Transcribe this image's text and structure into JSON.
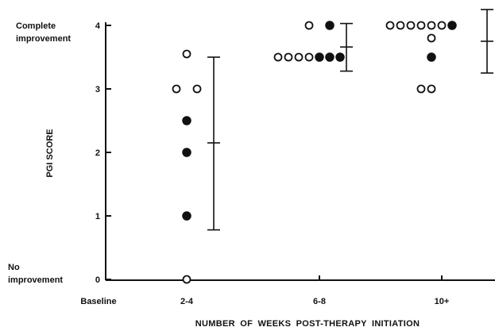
{
  "chart_data": {
    "type": "scatter",
    "xlabel": "NUMBER OF WEEKS POST-THERAPY INITIATION",
    "ylabel": "PGI SCORE",
    "ylim": [
      0,
      4
    ],
    "categories": [
      "Baseline",
      "2-4",
      "6-8",
      "10+"
    ],
    "y_ticks": [
      {
        "value": 4,
        "label": "4"
      },
      {
        "value": 3,
        "label": "3"
      },
      {
        "value": 2,
        "label": "2"
      },
      {
        "value": 1,
        "label": "1"
      },
      {
        "value": 0,
        "label": "0"
      }
    ],
    "y_annotations": [
      {
        "value": 4,
        "lines": [
          "Complete",
          "improvement"
        ]
      },
      {
        "value": 0,
        "lines": [
          "No",
          "improvement"
        ]
      }
    ],
    "marker_legend": {
      "open": "open circle",
      "filled": "filled circle"
    },
    "points": [
      {
        "category": "2-4",
        "y": 3.55,
        "marker": "open",
        "slot": 0
      },
      {
        "category": "2-4",
        "y": 3.0,
        "marker": "open",
        "slot": -1
      },
      {
        "category": "2-4",
        "y": 3.0,
        "marker": "open",
        "slot": 1
      },
      {
        "category": "2-4",
        "y": 2.5,
        "marker": "filled",
        "slot": 0
      },
      {
        "category": "2-4",
        "y": 2.0,
        "marker": "filled",
        "slot": 0
      },
      {
        "category": "2-4",
        "y": 1.0,
        "marker": "filled",
        "slot": 0
      },
      {
        "category": "2-4",
        "y": 0.0,
        "marker": "open",
        "slot": 0
      },
      {
        "category": "6-8",
        "y": 4.0,
        "marker": "open",
        "slot": -1
      },
      {
        "category": "6-8",
        "y": 4.0,
        "marker": "filled",
        "slot": 1
      },
      {
        "category": "6-8",
        "y": 3.5,
        "marker": "open",
        "slot": -4
      },
      {
        "category": "6-8",
        "y": 3.5,
        "marker": "open",
        "slot": -3
      },
      {
        "category": "6-8",
        "y": 3.5,
        "marker": "open",
        "slot": -2
      },
      {
        "category": "6-8",
        "y": 3.5,
        "marker": "open",
        "slot": -1
      },
      {
        "category": "6-8",
        "y": 3.5,
        "marker": "filled",
        "slot": 0
      },
      {
        "category": "6-8",
        "y": 3.5,
        "marker": "filled",
        "slot": 1
      },
      {
        "category": "6-8",
        "y": 3.5,
        "marker": "filled",
        "slot": 2
      },
      {
        "category": "10+",
        "y": 4.0,
        "marker": "open",
        "slot": -5
      },
      {
        "category": "10+",
        "y": 4.0,
        "marker": "open",
        "slot": -4
      },
      {
        "category": "10+",
        "y": 4.0,
        "marker": "open",
        "slot": -3
      },
      {
        "category": "10+",
        "y": 4.0,
        "marker": "open",
        "slot": -2
      },
      {
        "category": "10+",
        "y": 4.0,
        "marker": "open",
        "slot": -1
      },
      {
        "category": "10+",
        "y": 4.0,
        "marker": "open",
        "slot": 0
      },
      {
        "category": "10+",
        "y": 4.0,
        "marker": "filled",
        "slot": 1
      },
      {
        "category": "10+",
        "y": 3.8,
        "marker": "open",
        "slot": -1
      },
      {
        "category": "10+",
        "y": 3.5,
        "marker": "filled",
        "slot": -1
      },
      {
        "category": "10+",
        "y": 3.0,
        "marker": "open",
        "slot": -2
      },
      {
        "category": "10+",
        "y": 3.0,
        "marker": "open",
        "slot": -1
      }
    ],
    "error_bars": [
      {
        "category": "2-4",
        "low": 0.78,
        "mean": 2.15,
        "high": 3.5
      },
      {
        "category": "6-8",
        "low": 3.28,
        "mean": 3.66,
        "high": 4.03
      },
      {
        "category": "10+",
        "low": 3.25,
        "mean": 3.75,
        "high": 4.25
      }
    ],
    "grid": false,
    "legend": "none"
  }
}
